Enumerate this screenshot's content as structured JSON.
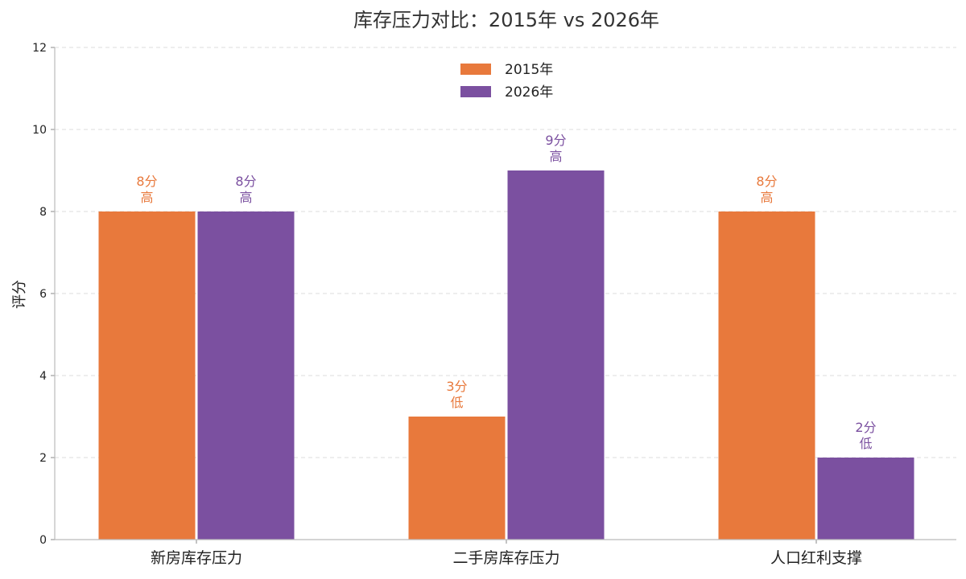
{
  "colors": {
    "series_2015": "#E8793C",
    "series_2026": "#7B50A0",
    "grid": "#dddddd",
    "axis": "#bbbbbb"
  },
  "chart_data": {
    "type": "bar",
    "title": "库存压力对比：2015年 vs 2026年",
    "xlabel": "",
    "ylabel": "评分",
    "ylim": [
      0,
      12
    ],
    "yticks": [
      0,
      2,
      4,
      6,
      8,
      10,
      12
    ],
    "grid": true,
    "legend_position": "top-center",
    "categories": [
      "新房库存压力",
      "二手房库存压力",
      "人口红利支撑"
    ],
    "series": [
      {
        "name": "2015年",
        "color": "#E8793C",
        "values": [
          8,
          3,
          8
        ],
        "labels": [
          [
            "8分",
            "高"
          ],
          [
            "3分",
            "低"
          ],
          [
            "8分",
            "高"
          ]
        ]
      },
      {
        "name": "2026年",
        "color": "#7B50A0",
        "values": [
          8,
          9,
          2
        ],
        "labels": [
          [
            "8分",
            "高"
          ],
          [
            "9分",
            "高"
          ],
          [
            "2分",
            "低"
          ]
        ]
      }
    ]
  }
}
